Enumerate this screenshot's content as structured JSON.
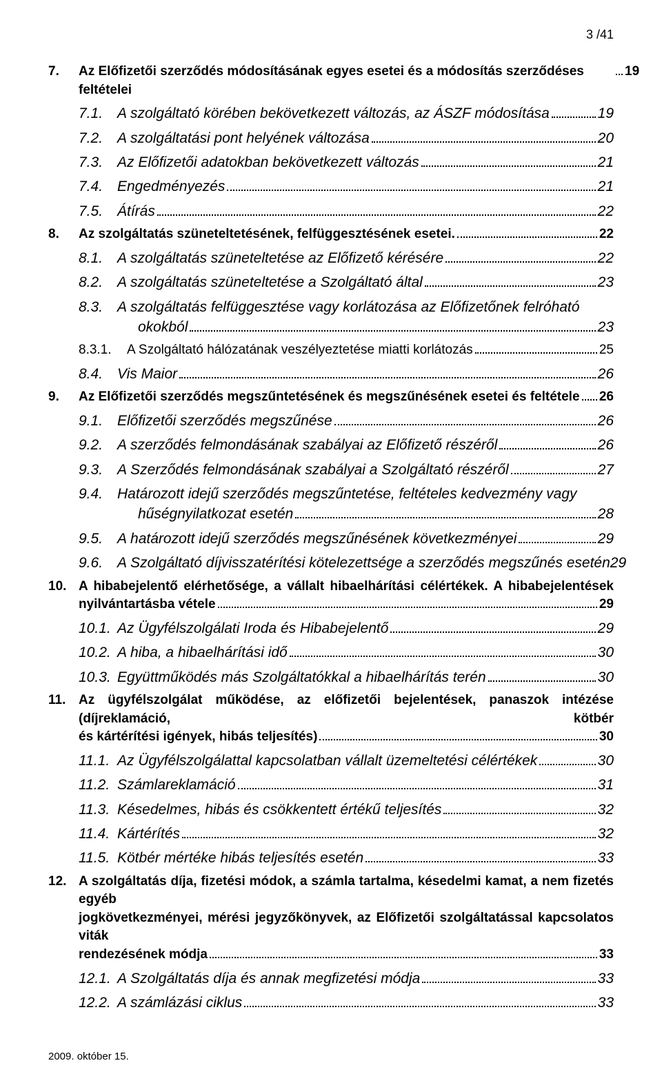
{
  "page_indicator": "3 /41",
  "footer": "2009. október 15.",
  "entries": [
    {
      "style": "lvl1",
      "n": "7.",
      "t": "Az Előfizetői szerződés módosításának egyes esetei és a módosítás szerződéses feltételei",
      "p": "19"
    },
    {
      "style": "lvl2-italic",
      "n": "7.1.",
      "t": "A szolgáltató körében bekövetkezett változás, az ÁSZF módosítása",
      "p": "19"
    },
    {
      "style": "lvl2-italic",
      "n": "7.2.",
      "t": "A szolgáltatási pont helyének változása",
      "p": "20"
    },
    {
      "style": "lvl2-italic",
      "n": "7.3.",
      "t": "Az Előfizetői adatokban bekövetkezett változás",
      "p": "21"
    },
    {
      "style": "lvl2-italic",
      "n": "7.4.",
      "t": "Engedményezés",
      "p": "21"
    },
    {
      "style": "lvl2-italic",
      "n": "7.5.",
      "t": "Átírás",
      "p": "22"
    },
    {
      "style": "lvl1",
      "n": "8.",
      "t": "Az szolgáltatás szüneteltetésének, felfüggesztésének esetei.",
      "p": "22"
    },
    {
      "style": "lvl2-italic",
      "n": "8.1.",
      "t": "A szolgáltatás szüneteltetése az Előfizető kérésére",
      "p": "22"
    },
    {
      "style": "lvl2-italic",
      "n": "8.2.",
      "t": "A szolgáltatás szüneteltetése a Szolgáltató által",
      "p": "23"
    },
    {
      "style": "lvl2-italic",
      "n": "8.3.",
      "t": "A szolgáltatás felfüggesztése vagy korlátozása az Előfizetőnek felróható",
      "cont": "okokból",
      "p": "23"
    },
    {
      "style": "lvl3-plain",
      "n": "8.3.1.",
      "t": "A Szolgáltató hálózatának veszélyeztetése miatti korlátozás",
      "p": "25"
    },
    {
      "style": "lvl2-italic",
      "n": "8.4.",
      "t": "Vis Maior",
      "p": "26"
    },
    {
      "style": "lvl1",
      "n": "9.",
      "t": "Az Előfizetői szerződés megszűntetésének és megszűnésének esetei és feltétele",
      "p": "26"
    },
    {
      "style": "lvl2-italic",
      "n": "9.1.",
      "t": "Előfizetői szerződés megszűnése",
      "p": "26"
    },
    {
      "style": "lvl2-italic",
      "n": "9.2.",
      "t": "A szerződés felmondásának szabályai az Előfizető részéről",
      "p": "26"
    },
    {
      "style": "lvl2-italic",
      "n": "9.3.",
      "t": "A Szerződés felmondásának szabályai a Szolgáltató részéről",
      "p": "27"
    },
    {
      "style": "lvl2-italic",
      "n": "9.4.",
      "t": "Határozott idejű szerződés megszűntetése, feltételes kedvezmény vagy",
      "cont": "hűségnyilatkozat esetén",
      "p": "28"
    },
    {
      "style": "lvl2-italic",
      "n": "9.5.",
      "t": "A határozott idejű szerződés megszűnésének következményei",
      "p": "29"
    },
    {
      "style": "lvl2-italic",
      "n": "9.6.",
      "t": "A Szolgáltató díjvisszatérítési kötelezettsége a szerződés megszűnés esetén",
      "p": "29",
      "nodots": true
    },
    {
      "style": "lvl1",
      "n": "10.",
      "t1": "A hibabejelentő elérhetősége, a vállalt hibaelhárítási célértékek. A hibabejelentések",
      "cont": "nyilvántartásba vétele",
      "p": "29",
      "justify": true
    },
    {
      "style": "lvl2-italic",
      "n": "10.1.",
      "t": "Az Ügyfélszolgálati Iroda és Hibabejelentő",
      "p": "29"
    },
    {
      "style": "lvl2-italic",
      "n": "10.2.",
      "t": "A hiba, a hibaelhárítási idő",
      "p": "30"
    },
    {
      "style": "lvl2-italic",
      "n": "10.3.",
      "t": "Együttműködés más Szolgáltatókkal a hibaelhárítás terén",
      "p": "30"
    },
    {
      "style": "lvl1",
      "n": "11.",
      "t1": "Az ügyfélszolgálat működése, az előfizetői bejelentések, panaszok intézése (díjreklamáció, kötbér",
      "cont": "és kártérítési igények, hibás teljesítés)",
      "p": "30",
      "justify": true
    },
    {
      "style": "lvl2-italic",
      "n": "11.1.",
      "t": "Az Ügyfélszolgálattal kapcsolatban vállalt üzemeltetési célértékek",
      "p": "30"
    },
    {
      "style": "lvl2-italic",
      "n": "11.2.",
      "t": "Számlareklamáció",
      "p": "31"
    },
    {
      "style": "lvl2-italic",
      "n": "11.3.",
      "t": "Késedelmes, hibás és csökkentett értékű teljesítés",
      "p": "32"
    },
    {
      "style": "lvl2-italic",
      "n": "11.4.",
      "t": "Kártérítés",
      "p": "32"
    },
    {
      "style": "lvl2-italic",
      "n": "11.5.",
      "t": "Kötbér mértéke hibás teljesítés esetén",
      "p": "33"
    },
    {
      "style": "lvl1",
      "n": "12.",
      "t1": "A szolgáltatás díja, fizetési módok, a számla tartalma, késedelmi kamat, a nem fizetés egyéb",
      "t2": "jogkövetkezményei, mérési jegyzőkönyvek, az Előfizetői szolgáltatással kapcsolatos viták",
      "cont": "rendezésének módja",
      "p": "33",
      "justify": true
    },
    {
      "style": "lvl2-italic",
      "n": "12.1.",
      "t": "A Szolgáltatás díja és annak megfizetési módja",
      "p": "33"
    },
    {
      "style": "lvl2-italic",
      "n": "12.2.",
      "t": "A számlázási ciklus",
      "p": "33"
    }
  ]
}
